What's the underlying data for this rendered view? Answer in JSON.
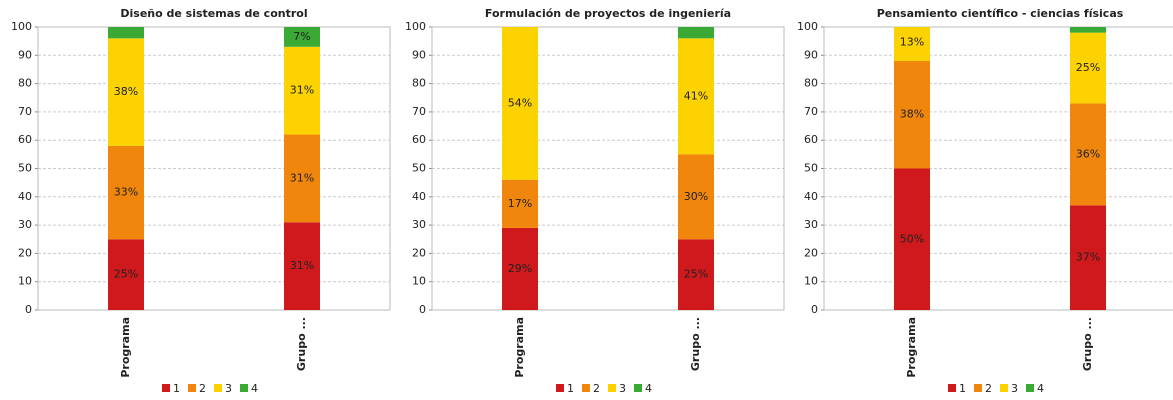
{
  "chart_data": [
    {
      "type": "bar",
      "stacked": true,
      "title": "Diseño de sistemas de control",
      "categories": [
        "Programa",
        "Grupo ..."
      ],
      "series": [
        {
          "name": "1",
          "color": "#d0191c",
          "values": [
            25,
            31
          ],
          "value_labels": [
            "25%",
            "31%"
          ]
        },
        {
          "name": "2",
          "color": "#f0870c",
          "values": [
            33,
            31
          ],
          "value_labels": [
            "33%",
            "31%"
          ]
        },
        {
          "name": "3",
          "color": "#fcd200",
          "values": [
            38,
            31
          ],
          "value_labels": [
            "38%",
            "31%"
          ]
        },
        {
          "name": "4",
          "color": "#3aaa35",
          "values": [
            4,
            7
          ],
          "value_labels": [
            null,
            "7%"
          ]
        }
      ],
      "ylim": [
        0,
        100
      ],
      "yticks": [
        0,
        10,
        20,
        30,
        40,
        50,
        60,
        70,
        80,
        90,
        100
      ],
      "grid": true,
      "legend": "bottom"
    },
    {
      "type": "bar",
      "stacked": true,
      "title": "Formulación de proyectos de ingeniería",
      "categories": [
        "Programa",
        "Grupo ..."
      ],
      "series": [
        {
          "name": "1",
          "color": "#d0191c",
          "values": [
            29,
            25
          ],
          "value_labels": [
            "29%",
            "25%"
          ]
        },
        {
          "name": "2",
          "color": "#f0870c",
          "values": [
            17,
            30
          ],
          "value_labels": [
            "17%",
            "30%"
          ]
        },
        {
          "name": "3",
          "color": "#fcd200",
          "values": [
            54,
            41
          ],
          "value_labels": [
            "54%",
            "41%"
          ]
        },
        {
          "name": "4",
          "color": "#3aaa35",
          "values": [
            0,
            4
          ],
          "value_labels": [
            null,
            null
          ]
        }
      ],
      "ylim": [
        0,
        100
      ],
      "yticks": [
        0,
        10,
        20,
        30,
        40,
        50,
        60,
        70,
        80,
        90,
        100
      ],
      "grid": true,
      "legend": "bottom"
    },
    {
      "type": "bar",
      "stacked": true,
      "title": "Pensamiento científico - ciencias físicas",
      "categories": [
        "Programa",
        "Grupo ..."
      ],
      "series": [
        {
          "name": "1",
          "color": "#d0191c",
          "values": [
            50,
            37
          ],
          "value_labels": [
            "50%",
            "37%"
          ]
        },
        {
          "name": "2",
          "color": "#f0870c",
          "values": [
            38,
            36
          ],
          "value_labels": [
            "38%",
            "36%"
          ]
        },
        {
          "name": "3",
          "color": "#fcd200",
          "values": [
            13,
            25
          ],
          "value_labels": [
            "13%",
            "25%"
          ]
        },
        {
          "name": "4",
          "color": "#3aaa35",
          "values": [
            0,
            2
          ],
          "value_labels": [
            null,
            null
          ]
        }
      ],
      "ylim": [
        0,
        100
      ],
      "yticks": [
        0,
        10,
        20,
        30,
        40,
        50,
        60,
        70,
        80,
        90,
        100
      ],
      "grid": true,
      "legend": "bottom"
    }
  ]
}
